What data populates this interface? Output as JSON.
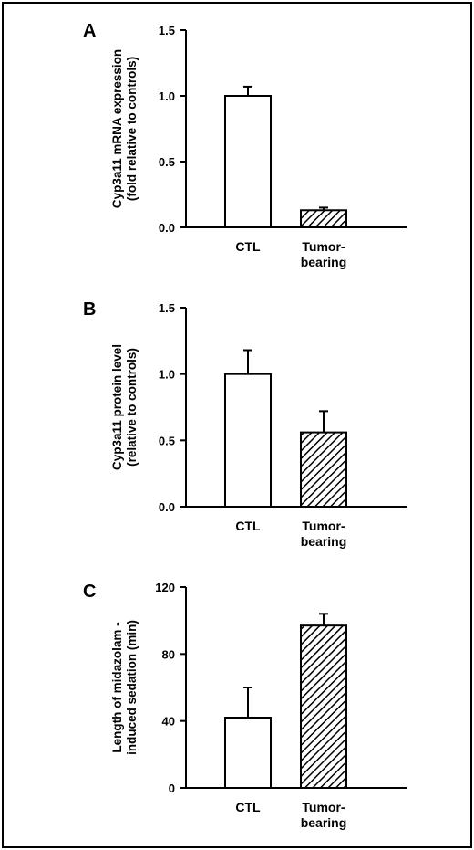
{
  "colors": {
    "frame": "#000000",
    "bar_fill": "#ffffff",
    "hatch": "#000000"
  },
  "chart_data": [
    {
      "panel_label": "A",
      "type": "bar",
      "ylabel_lines": [
        "Cyp3a11 mRNA expression",
        "(fold relative to controls)"
      ],
      "ylim": [
        0,
        1.5
      ],
      "yticks": [
        "0.0",
        "0.5",
        "1.0",
        "1.5"
      ],
      "ytick_values": [
        0,
        0.5,
        1.0,
        1.5
      ],
      "categories": [
        {
          "lines": [
            "CTL"
          ],
          "value": 1.0,
          "error": 0.07,
          "pattern": "open"
        },
        {
          "lines": [
            "Tumor-",
            "bearing"
          ],
          "value": 0.13,
          "error": 0.02,
          "pattern": "hatched"
        }
      ]
    },
    {
      "panel_label": "B",
      "type": "bar",
      "ylabel_lines": [
        "Cyp3a11 protein level",
        "(relative to controls)"
      ],
      "ylim": [
        0,
        1.5
      ],
      "yticks": [
        "0.0",
        "0.5",
        "1.0",
        "1.5"
      ],
      "ytick_values": [
        0,
        0.5,
        1.0,
        1.5
      ],
      "categories": [
        {
          "lines": [
            "CTL"
          ],
          "value": 1.0,
          "error": 0.18,
          "pattern": "open"
        },
        {
          "lines": [
            "Tumor-",
            "bearing"
          ],
          "value": 0.56,
          "error": 0.16,
          "pattern": "hatched"
        }
      ]
    },
    {
      "panel_label": "C",
      "type": "bar",
      "ylabel_lines": [
        "Length of midazolam -",
        "induced sedation (min)"
      ],
      "ylim": [
        0,
        120
      ],
      "yticks": [
        "0",
        "40",
        "80",
        "120"
      ],
      "ytick_values": [
        0,
        40,
        80,
        120
      ],
      "categories": [
        {
          "lines": [
            "CTL"
          ],
          "value": 42,
          "error": 18,
          "pattern": "open"
        },
        {
          "lines": [
            "Tumor-",
            "bearing"
          ],
          "value": 97,
          "error": 7,
          "pattern": "hatched"
        }
      ]
    }
  ]
}
